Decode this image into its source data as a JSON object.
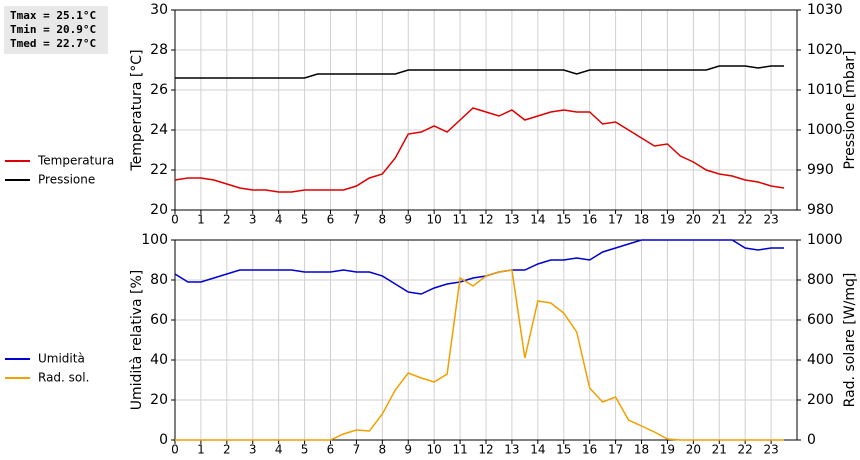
{
  "chart_data": [
    {
      "type": "line",
      "annotations": [
        "Tmax = 25.1°C",
        "Tmin = 20.9°C",
        "Tmed = 22.7°C"
      ],
      "ylabel": "Temperatura [°C]",
      "y2label": "Pressione [mbar]",
      "x": [
        0,
        0.5,
        1,
        1.5,
        2,
        2.5,
        3,
        3.5,
        4,
        4.5,
        5,
        5.5,
        6,
        6.5,
        7,
        7.5,
        8,
        8.5,
        9,
        9.5,
        10,
        10.5,
        11,
        11.5,
        12,
        12.5,
        13,
        13.5,
        14,
        14.5,
        15,
        15.5,
        16,
        16.5,
        17,
        17.5,
        18,
        18.5,
        19,
        19.5,
        20,
        20.5,
        21,
        21.5,
        22,
        22.5,
        23,
        23.5
      ],
      "xlim": [
        0,
        24
      ],
      "xticks": [
        0,
        1,
        2,
        3,
        4,
        5,
        6,
        7,
        8,
        9,
        10,
        11,
        12,
        13,
        14,
        15,
        16,
        17,
        18,
        19,
        20,
        21,
        22,
        23
      ],
      "ylim": [
        20,
        30
      ],
      "yticks": [
        20,
        22,
        24,
        26,
        28,
        30
      ],
      "y2lim": [
        980,
        1030
      ],
      "y2ticks": [
        980,
        990,
        1000,
        1010,
        1020,
        1030
      ],
      "grid": true,
      "legend": "left",
      "series": [
        {
          "name": "Temperatura",
          "color": "#dd0000",
          "values": [
            21.5,
            21.6,
            21.6,
            21.5,
            21.3,
            21.1,
            21.0,
            21.0,
            20.9,
            20.9,
            21.0,
            21.0,
            21.0,
            21.0,
            21.2,
            21.6,
            21.8,
            22.6,
            23.8,
            23.9,
            24.2,
            23.9,
            24.5,
            25.1,
            24.9,
            24.7,
            25.0,
            24.5,
            24.7,
            24.9,
            25.0,
            24.9,
            24.9,
            24.3,
            24.4,
            24.0,
            23.6,
            23.2,
            23.3,
            22.7,
            22.4,
            22.0,
            21.8,
            21.7,
            21.5,
            21.4,
            21.2,
            21.1
          ]
        },
        {
          "name": "Pressione",
          "color": "#000000",
          "axis": "y2",
          "values": [
            1013,
            1013,
            1013,
            1013,
            1013,
            1013,
            1013,
            1013,
            1013,
            1013,
            1013,
            1014,
            1014,
            1014,
            1014,
            1014,
            1014,
            1014,
            1015,
            1015,
            1015,
            1015,
            1015,
            1015,
            1015,
            1015,
            1015,
            1015,
            1015,
            1015,
            1015,
            1014,
            1015,
            1015,
            1015,
            1015,
            1015,
            1015,
            1015,
            1015,
            1015,
            1015,
            1016,
            1016,
            1016,
            1015.5,
            1016,
            1016
          ]
        }
      ]
    },
    {
      "type": "line",
      "ylabel": "Umidità relativa [%]",
      "y2label": "Rad. solare [W/mq]",
      "x": [
        0,
        0.5,
        1,
        1.5,
        2,
        2.5,
        3,
        3.5,
        4,
        4.5,
        5,
        5.5,
        6,
        6.5,
        7,
        7.5,
        8,
        8.5,
        9,
        9.5,
        10,
        10.5,
        11,
        11.5,
        12,
        12.5,
        13,
        13.5,
        14,
        14.5,
        15,
        15.5,
        16,
        16.5,
        17,
        17.5,
        18,
        18.5,
        19,
        19.5,
        20,
        20.5,
        21,
        21.5,
        22,
        22.5,
        23,
        23.5
      ],
      "xlim": [
        0,
        24
      ],
      "xticks": [
        0,
        1,
        2,
        3,
        4,
        5,
        6,
        7,
        8,
        9,
        10,
        11,
        12,
        13,
        14,
        15,
        16,
        17,
        18,
        19,
        20,
        21,
        22,
        23
      ],
      "ylim": [
        0,
        100
      ],
      "yticks": [
        0,
        20,
        40,
        60,
        80,
        100
      ],
      "y2lim": [
        0,
        1000
      ],
      "y2ticks": [
        0,
        200,
        400,
        600,
        800,
        1000
      ],
      "grid": true,
      "legend": "left",
      "series": [
        {
          "name": "Umidità",
          "color": "#0000cc",
          "values": [
            83,
            79,
            79,
            81,
            83,
            85,
            85,
            85,
            85,
            85,
            84,
            84,
            84,
            85,
            84,
            84,
            82,
            78,
            74,
            73,
            76,
            78,
            79,
            81,
            82,
            84,
            85,
            85,
            88,
            90,
            90,
            91,
            90,
            94,
            96,
            98,
            100,
            100,
            100,
            100,
            100,
            100,
            100,
            100,
            96,
            95,
            96,
            96
          ]
        },
        {
          "name": "Rad. sol.",
          "color": "#f0a000",
          "axis": "y2",
          "values": [
            0,
            0,
            0,
            0,
            0,
            0,
            0,
            0,
            0,
            0,
            0,
            0,
            0,
            30,
            50,
            45,
            130,
            250,
            335,
            310,
            290,
            330,
            810,
            770,
            820,
            840,
            850,
            410,
            695,
            685,
            635,
            540,
            260,
            190,
            215,
            100,
            70,
            40,
            5,
            0,
            0,
            0,
            0,
            0,
            0,
            0,
            0,
            0
          ]
        }
      ]
    }
  ]
}
